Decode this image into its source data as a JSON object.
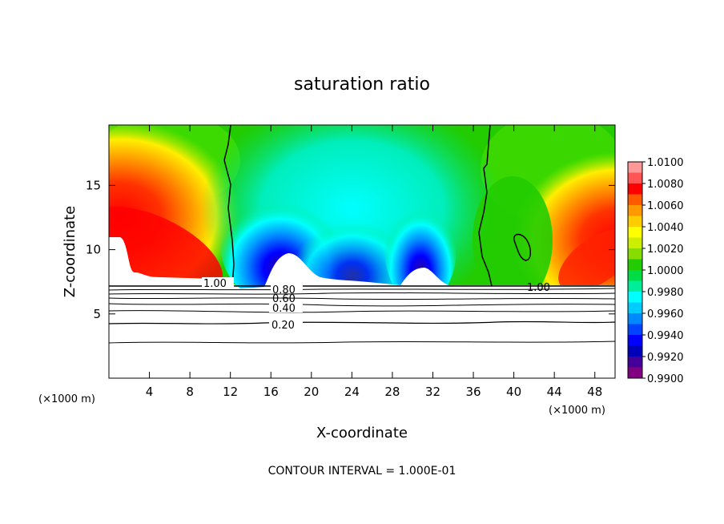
{
  "chart_data": {
    "type": "heatmap",
    "title": "saturation ratio",
    "xlabel": "X-coordinate",
    "ylabel": "Z-coordinate",
    "x_unit": "(×1000 m)",
    "y_unit": "(×1000 m)",
    "footer": "CONTOUR INTERVAL = 1.000E-01",
    "xlim": [
      0,
      50
    ],
    "ylim": [
      0,
      19.7
    ],
    "x_ticks": [
      4,
      8,
      12,
      16,
      20,
      24,
      28,
      32,
      36,
      40,
      44,
      48
    ],
    "y_ticks": [
      5,
      10,
      15
    ],
    "colorbar": {
      "min": 0.99,
      "max": 1.01,
      "labels": [
        "1.0100",
        "1.0080",
        "1.0060",
        "1.0040",
        "1.0020",
        "1.0000",
        "0.9980",
        "0.9960",
        "0.9940",
        "0.9920",
        "0.9900"
      ],
      "colors": [
        "#ff9999",
        "#ff5555",
        "#ff0000",
        "#ff5a00",
        "#ff9900",
        "#ffcc00",
        "#ffff00",
        "#ccee00",
        "#88dd00",
        "#22cc00",
        "#00dd44",
        "#00ee99",
        "#00ffff",
        "#00ccff",
        "#0088ff",
        "#0044ff",
        "#0000ff",
        "#0000bb",
        "#440099",
        "#800080"
      ]
    },
    "contour_labels": [
      "1.00",
      "0.80",
      "0.60",
      "0.40",
      "0.20",
      "1.00"
    ],
    "contour_levels_below_field": [
      0.2,
      0.4,
      0.6,
      0.8,
      1.0
    ]
  }
}
